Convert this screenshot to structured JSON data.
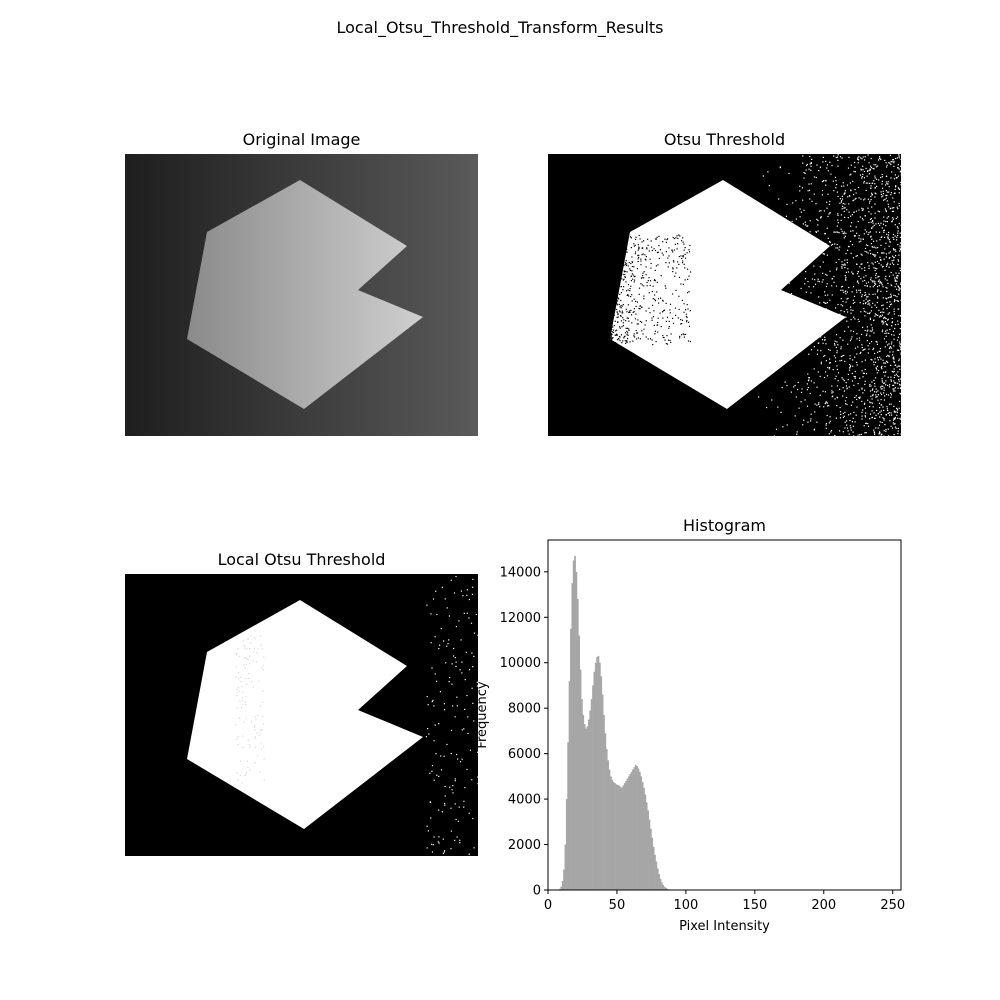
{
  "figure": {
    "title": "Local_Otsu_Threshold_Transform_Results"
  },
  "panels": {
    "original": {
      "title": "Original Image"
    },
    "otsu": {
      "title": "Otsu Threshold"
    },
    "local_otsu": {
      "title": "Local Otsu Threshold"
    },
    "histogram": {
      "title": "Histogram"
    }
  },
  "colors": {
    "bars": "#a6a6a6",
    "foreground": "#ffffff",
    "background": "#000000"
  },
  "chart_data": {
    "type": "bar",
    "title": "Histogram",
    "xlabel": "Pixel Intensity",
    "ylabel": "Frequency",
    "xlim": [
      0,
      256
    ],
    "ylim": [
      0,
      15400
    ],
    "xticks": [
      0,
      50,
      100,
      150,
      200,
      250
    ],
    "yticks": [
      0,
      2000,
      4000,
      6000,
      8000,
      10000,
      12000,
      14000
    ],
    "grid": false,
    "bin_width": 1,
    "x": [
      8,
      9,
      10,
      11,
      12,
      13,
      14,
      15,
      16,
      17,
      18,
      19,
      20,
      21,
      22,
      23,
      24,
      25,
      26,
      27,
      28,
      29,
      30,
      31,
      32,
      33,
      34,
      35,
      36,
      37,
      38,
      39,
      40,
      41,
      42,
      43,
      44,
      45,
      46,
      47,
      48,
      49,
      50,
      51,
      52,
      53,
      54,
      55,
      56,
      57,
      58,
      59,
      60,
      61,
      62,
      63,
      64,
      65,
      66,
      67,
      68,
      69,
      70,
      71,
      72,
      73,
      74,
      75,
      76,
      77,
      78,
      79,
      80,
      81,
      82,
      83,
      84,
      85,
      86,
      87,
      88,
      89,
      90,
      91,
      92,
      93,
      94,
      95,
      96,
      97,
      98,
      99,
      100,
      101,
      102,
      103,
      104,
      105,
      106,
      107
    ],
    "values": [
      50,
      150,
      400,
      900,
      2000,
      4000,
      6500,
      9200,
      11500,
      13500,
      14500,
      14700,
      14000,
      12800,
      11200,
      9700,
      8400,
      7700,
      7300,
      7100,
      7200,
      7500,
      7900,
      8400,
      9000,
      9600,
      10000,
      10250,
      10300,
      10000,
      9400,
      8600,
      7700,
      6900,
      6200,
      5700,
      5300,
      5000,
      4850,
      4750,
      4700,
      4650,
      4620,
      4600,
      4550,
      4500,
      4600,
      4700,
      4800,
      4900,
      5000,
      5100,
      5200,
      5300,
      5400,
      5500,
      5450,
      5350,
      5200,
      5000,
      4750,
      4500,
      4200,
      3850,
      3500,
      3100,
      2700,
      2300,
      1900,
      1550,
      1250,
      950,
      700,
      500,
      330,
      220,
      140,
      90,
      50,
      30,
      15,
      8,
      5,
      3,
      2,
      1,
      0,
      0,
      0,
      0,
      0,
      0,
      0,
      0,
      0,
      0,
      0,
      0,
      0,
      0
    ]
  }
}
